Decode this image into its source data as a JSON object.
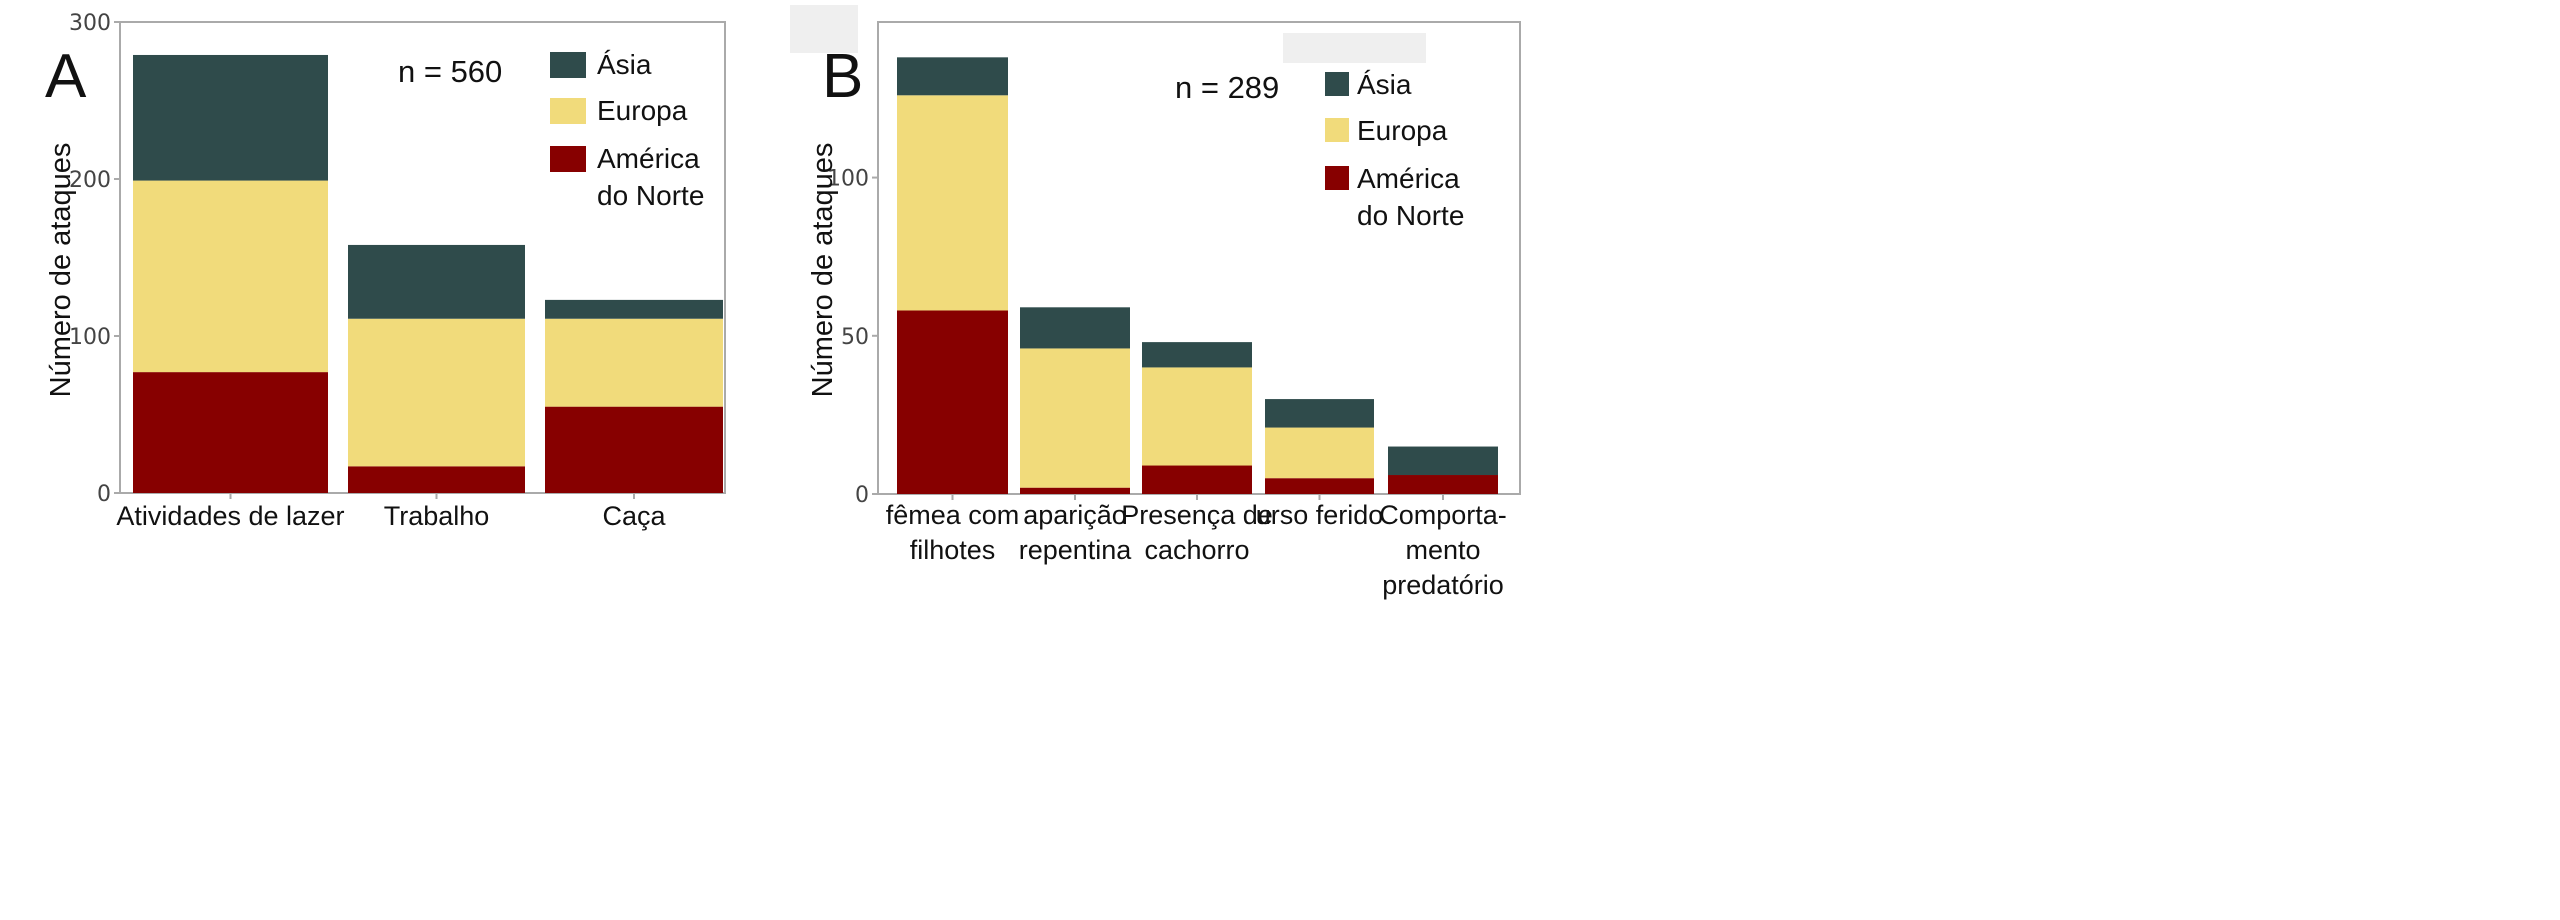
{
  "colors": {
    "Ásia": "#2f4b4b",
    "Europa": "#f1db7b",
    "América do Norte": "#870000",
    "axis": "#999999"
  },
  "chart_data": [
    {
      "type": "bar",
      "stacked": true,
      "panel_label": "A",
      "annotation": "n = 560",
      "ylabel": "Número de ataques",
      "xlabel": "",
      "ylim": [
        0,
        300
      ],
      "yticks": [
        0,
        100,
        200,
        300
      ],
      "grid": false,
      "legend_position": "top-right",
      "categories": [
        [
          "Atividades de lazer"
        ],
        [
          "Trabalho"
        ],
        [
          "Caça"
        ]
      ],
      "series": [
        {
          "name": "América do Norte",
          "legend_lines": [
            "América",
            "do Norte"
          ],
          "values": [
            77,
            17,
            55
          ]
        },
        {
          "name": "Europa",
          "legend_lines": [
            "Europa"
          ],
          "values": [
            122,
            94,
            56
          ]
        },
        {
          "name": "Ásia",
          "legend_lines": [
            "Ásia"
          ],
          "values": [
            80,
            47,
            12
          ]
        }
      ]
    },
    {
      "type": "bar",
      "stacked": true,
      "panel_label": "B",
      "annotation": "n = 289",
      "ylabel": "Número de ataques",
      "xlabel": "",
      "ylim": [
        0,
        140
      ],
      "yticks": [
        0,
        50,
        100
      ],
      "grid": false,
      "legend_position": "top-right",
      "categories": [
        [
          "fêmea com",
          "filhotes"
        ],
        [
          "aparição",
          "repentina"
        ],
        [
          "Presença de",
          "cachorro"
        ],
        [
          "urso ferido"
        ],
        [
          "Comporta-",
          "mento",
          "predatório"
        ]
      ],
      "series": [
        {
          "name": "América do Norte",
          "legend_lines": [
            "América",
            "do Norte"
          ],
          "values": [
            58,
            2,
            9,
            5,
            6
          ]
        },
        {
          "name": "Europa",
          "legend_lines": [
            "Europa"
          ],
          "values": [
            68,
            44,
            31,
            16,
            0
          ]
        },
        {
          "name": "Ásia",
          "legend_lines": [
            "Ásia"
          ],
          "values": [
            12,
            13,
            8,
            9,
            9
          ]
        }
      ]
    }
  ]
}
